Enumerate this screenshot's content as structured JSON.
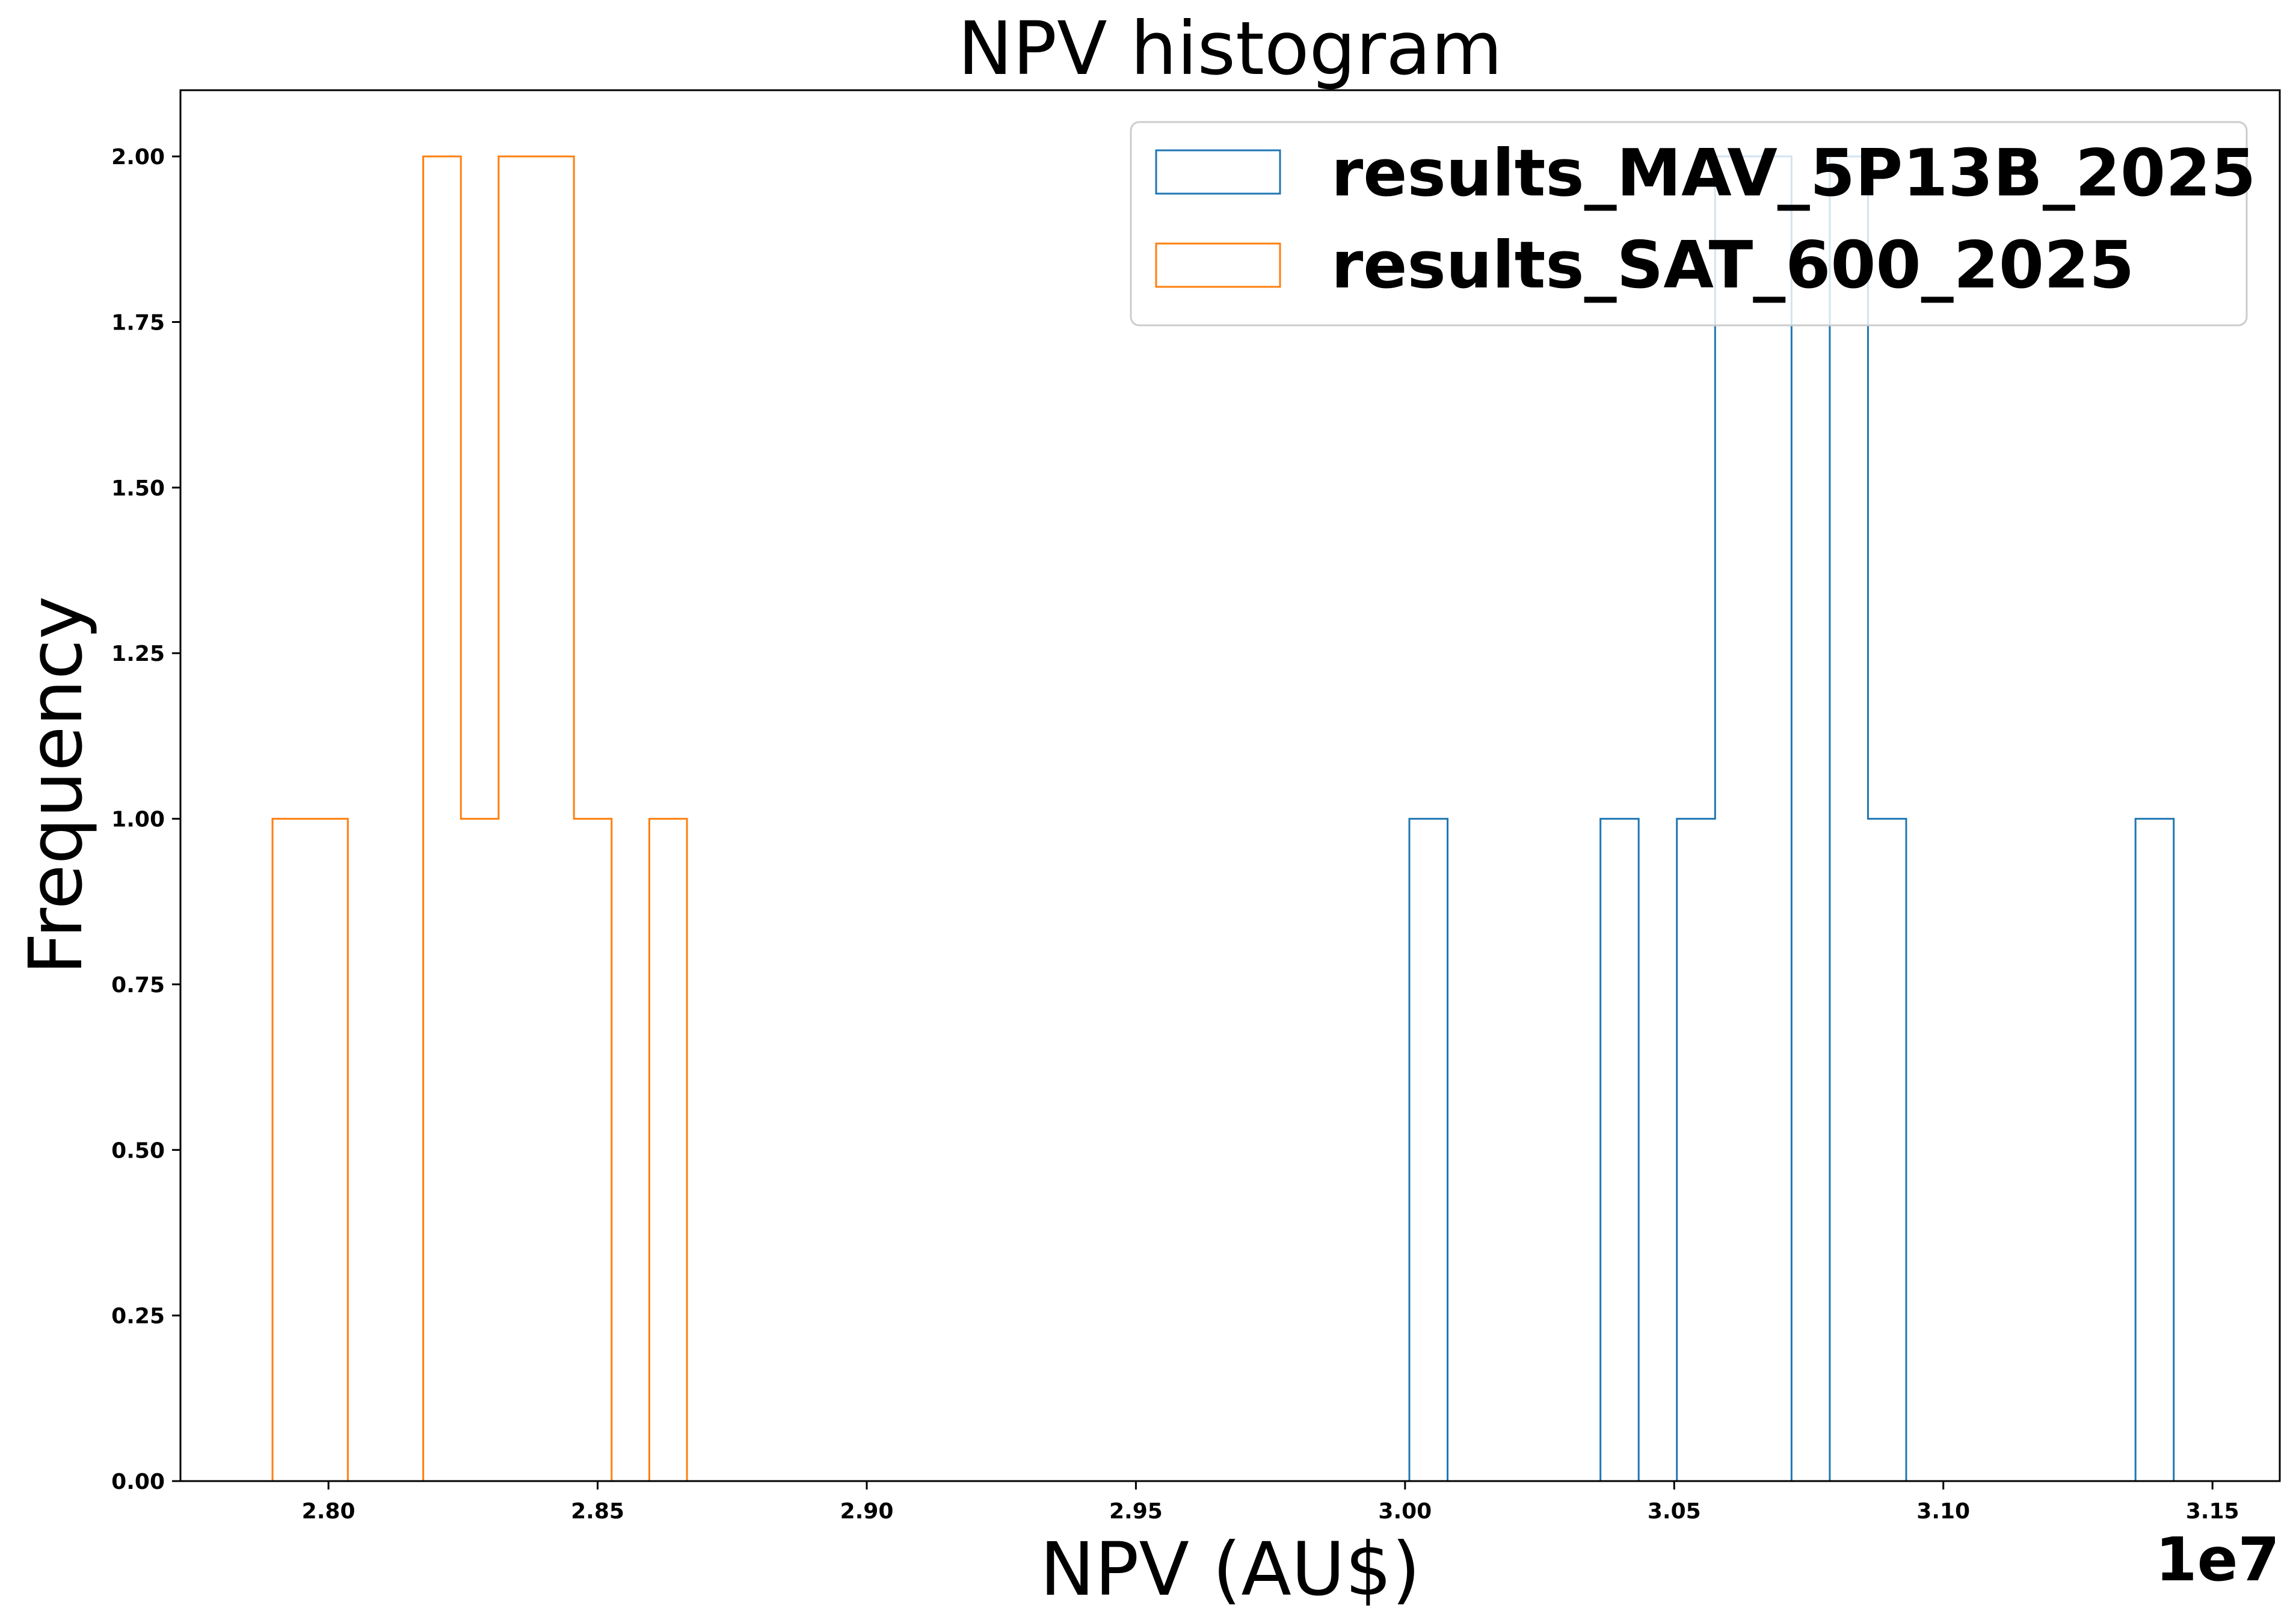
{
  "chart_data": {
    "type": "histogram",
    "title": "NPV histogram",
    "xlabel": "NPV (AU$)",
    "ylabel": "Frequency",
    "x_offset_label": "1e7",
    "xlim": [
      2.7725,
      3.1625
    ],
    "ylim": [
      0,
      2.1
    ],
    "x_ticks": [
      2.8,
      2.85,
      2.9,
      2.95,
      3.0,
      3.05,
      3.1,
      3.15
    ],
    "x_tick_labels": [
      "2.80",
      "2.85",
      "2.90",
      "2.95",
      "3.00",
      "3.05",
      "3.10",
      "3.15"
    ],
    "y_ticks": [
      0,
      0.25,
      0.5,
      0.75,
      1.0,
      1.25,
      1.5,
      1.75,
      2.0
    ],
    "y_tick_labels": [
      "0.00",
      "0.25",
      "0.50",
      "0.75",
      "1.00",
      "1.25",
      "1.50",
      "1.75",
      "2.00"
    ],
    "grid": false,
    "legend_position": "top-right",
    "series": [
      {
        "name": "results_MAV_5P13B_2025",
        "color": "#1f77b4",
        "bin_edges": [
          3.0008,
          3.0079,
          3.015,
          3.0221,
          3.0292,
          3.0363,
          3.0434,
          3.0505,
          3.0576,
          3.0647,
          3.0718,
          3.0789,
          3.086,
          3.0931,
          3.1002,
          3.1073,
          3.1144,
          3.1215,
          3.1286,
          3.1357,
          3.1428
        ],
        "counts": [
          1,
          0,
          0,
          0,
          0,
          1,
          0,
          1,
          2,
          2,
          0,
          2,
          1,
          0,
          0,
          0,
          0,
          0,
          0,
          1
        ]
      },
      {
        "name": "results_SAT_600_2025",
        "color": "#ff7f0e",
        "bin_edges": [
          2.7896,
          2.7966,
          2.8036,
          2.8106,
          2.8176,
          2.8246,
          2.8316,
          2.8386,
          2.8456,
          2.8526,
          2.8596,
          2.8666
        ],
        "counts": [
          1,
          1,
          0,
          0,
          2,
          1,
          2,
          2,
          1,
          0,
          1
        ]
      }
    ]
  }
}
